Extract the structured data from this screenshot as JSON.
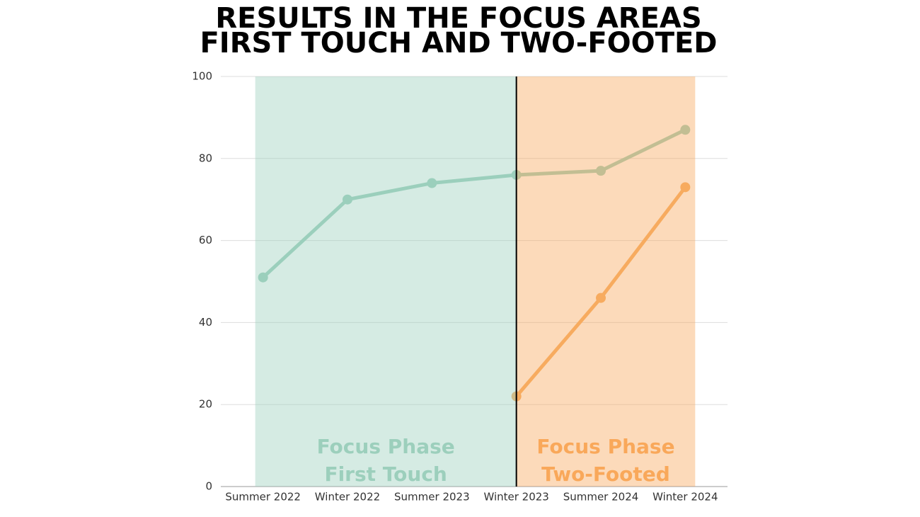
{
  "chart_data": {
    "type": "line",
    "title_lines": [
      "RESULTS IN THE FOCUS AREAS",
      "FIRST TOUCH AND TWO-FOOTED"
    ],
    "categories": [
      "Summer 2022",
      "Winter 2022",
      "Summer 2023",
      "Winter 2023",
      "Summer 2024",
      "Winter 2024"
    ],
    "series": [
      {
        "color": "#9ccfbc",
        "values": [
          51,
          70,
          74,
          76,
          77,
          87
        ]
      },
      {
        "color": "#f6ae62",
        "values": [
          null,
          null,
          null,
          22,
          46,
          73
        ]
      }
    ],
    "ylim": [
      0,
      100
    ],
    "yticks": [
      0,
      20,
      40,
      60,
      80,
      100
    ],
    "grid": true,
    "regions": [
      {
        "label_lines": [
          "Focus Phase",
          "First Touch"
        ],
        "from": 0,
        "to": 3,
        "color": "#9ccfbc"
      },
      {
        "label_lines": [
          "Focus Phase",
          "Two-Footed"
        ],
        "from": 3,
        "to": 5,
        "color": "#f9a85a"
      }
    ]
  }
}
